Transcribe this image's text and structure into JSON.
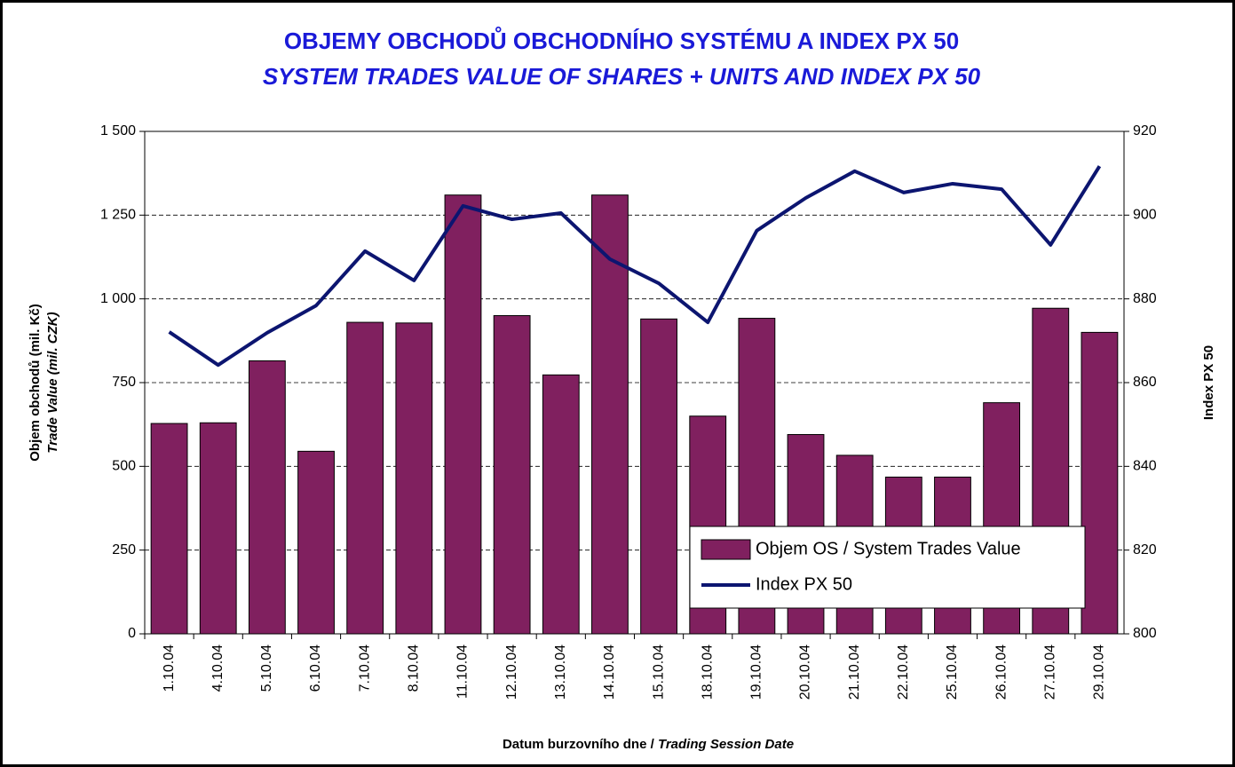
{
  "chart_data": {
    "type": "bar_line",
    "title": [
      "OBJEMY OBCHODŮ OBCHODNÍHO SYSTÉMU A INDEX PX 50",
      "SYSTEM  TRADES VALUE OF SHARES + UNITS AND INDEX PX 50"
    ],
    "ylabel": [
      "Objem obchodů (mil. Kč)",
      "Trade Value (mil. CZK)"
    ],
    "y2label": "Index PX 50",
    "xlabel": [
      "Datum burzovního dne / ",
      "Trading Session Date"
    ],
    "categories": [
      "1.10.04",
      "4.10.04",
      "5.10.04",
      "6.10.04",
      "7.10.04",
      "8.10.04",
      "11.10.04",
      "12.10.04",
      "13.10.04",
      "14.10.04",
      "15.10.04",
      "18.10.04",
      "19.10.04",
      "20.10.04",
      "21.10.04",
      "22.10.04",
      "25.10.04",
      "26.10.04",
      "27.10.04",
      "29.10.04"
    ],
    "series": [
      {
        "name": "Objem OS / System Trades Value",
        "type": "bar",
        "color": "#80205f",
        "values": [
          628,
          630,
          815,
          545,
          930,
          928,
          1310,
          950,
          773,
          1310,
          940,
          650,
          942,
          595,
          533,
          468,
          468,
          690,
          972,
          900
        ]
      },
      {
        "name": "Index PX 50",
        "type": "line",
        "axis": "y2",
        "color": "#0c1570",
        "values": [
          872.1,
          864.2,
          871.9,
          878.4,
          891.4,
          884.4,
          902.2,
          899.0,
          900.5,
          889.5,
          883.7,
          874.4,
          896.3,
          904.1,
          910.5,
          905.4,
          907.5,
          906.2,
          892.9,
          911.7
        ]
      }
    ],
    "ylim": [
      0,
      1500
    ],
    "yticks": [
      0,
      250,
      500,
      750,
      {
        "value": 1000,
        "label": "1 000"
      },
      {
        "value": 1250,
        "label": "1 250"
      },
      {
        "value": 1500,
        "label": "1 500"
      }
    ],
    "y2lim": [
      800,
      920
    ],
    "y2ticks": [
      800,
      820,
      840,
      860,
      880,
      900,
      920
    ],
    "grid": true,
    "legend": "lower-right"
  }
}
